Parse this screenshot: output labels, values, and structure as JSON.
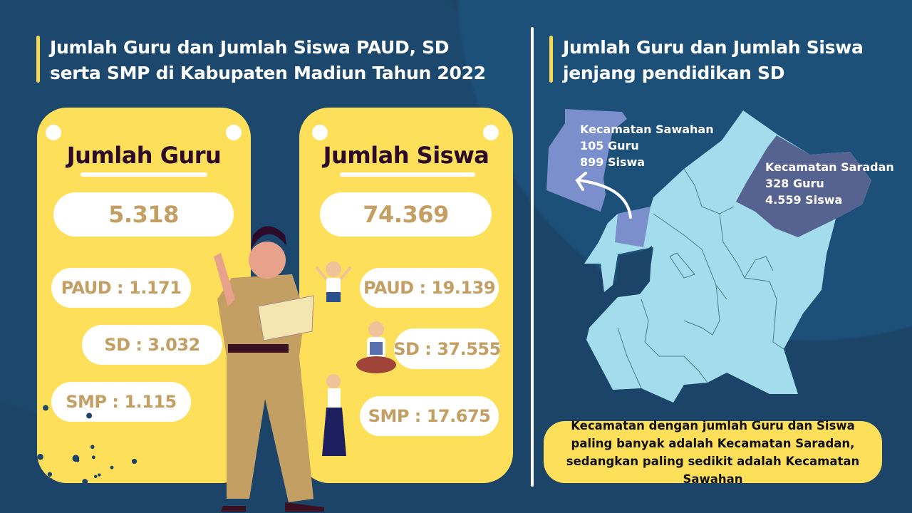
{
  "colors": {
    "background": "#1b4468",
    "card": "#fddf5a",
    "accent_bar": "#f9d94e",
    "value_text": "#c39f63",
    "heading_text": "#2b0a2a",
    "map_region": "#a3dcec",
    "sawahan": "#7b8fcc",
    "saradan": "#566390"
  },
  "left_title": "Jumlah Guru dan Jumlah Siswa PAUD, SD serta SMP di Kabupaten Madiun Tahun 2022",
  "right_title": "Jumlah Guru dan Jumlah Siswa jenjang pendidikan SD",
  "guru": {
    "title": "Jumlah Guru",
    "total": "5.318",
    "paud": "PAUD : 1.171",
    "sd": "SD : 3.032",
    "smp": "SMP : 1.115"
  },
  "siswa": {
    "title": "Jumlah Siswa",
    "total": "74.369",
    "paud": "PAUD : 19.139",
    "sd": "SD : 37.555",
    "smp": "SMP : 17.675"
  },
  "map": {
    "sawahan": {
      "name": "Kecamatan Sawahan",
      "guru": "105 Guru",
      "siswa": "899 Siswa"
    },
    "saradan": {
      "name": "Kecamatan Saradan",
      "guru": "328 Guru",
      "siswa": "4.559 Siswa"
    }
  },
  "note": "Kecamatan dengan jumlah Guru dan Siswa paling banyak adalah Kecamatan Saradan, sedangkan paling sedikit adalah Kecamatan Sawahan"
}
